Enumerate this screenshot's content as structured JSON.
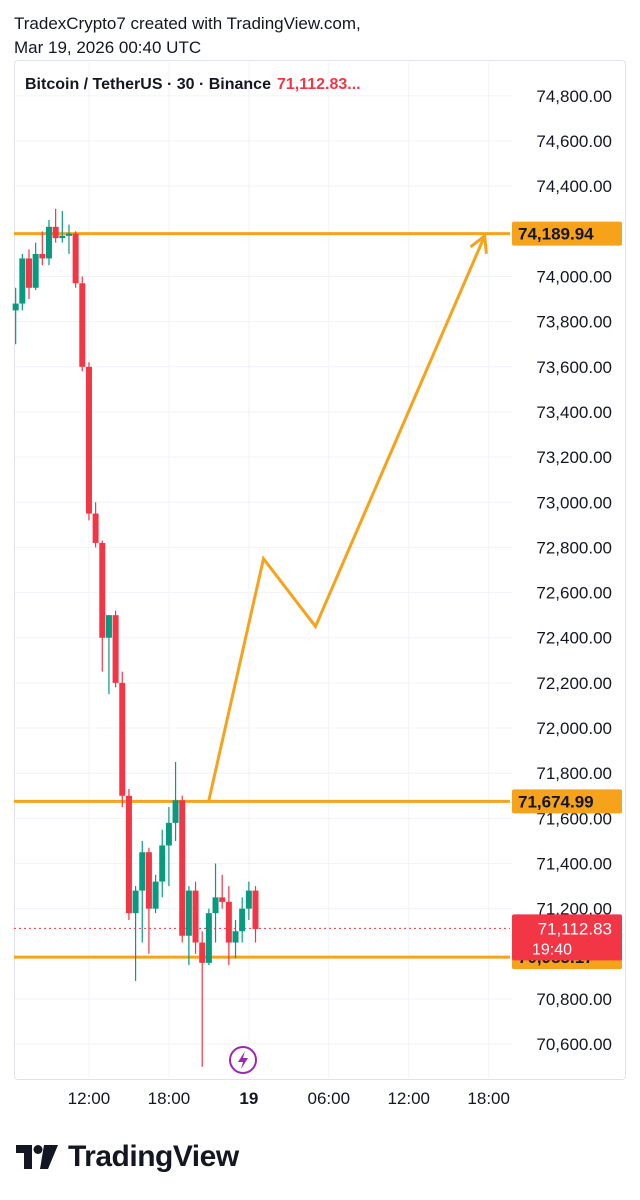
{
  "header": {
    "line1": "TradexCrypto7 created with TradingView.com,",
    "line2": "Mar 19, 2026 00:40 UTC"
  },
  "legend": {
    "symbol": "Bitcoin / TetherUS · 30 · Binance",
    "price": "71,112.83..."
  },
  "footer": {
    "brand": "TradingView"
  },
  "chart_data": {
    "type": "candlestick",
    "y_range": [
      70450,
      74950
    ],
    "y_ticks": [
      "74,800.00",
      "74,600.00",
      "74,400.00",
      "74,000.00",
      "73,800.00",
      "73,600.00",
      "73,400.00",
      "73,200.00",
      "73,000.00",
      "72,800.00",
      "72,600.00",
      "72,400.00",
      "72,200.00",
      "72,000.00",
      "71,800.00",
      "71,600.00",
      "71,400.00",
      "71,200.00",
      "70,800.00",
      "70,600.00"
    ],
    "y_tick_values": [
      74800,
      74600,
      74400,
      74000,
      73800,
      73600,
      73400,
      73200,
      73000,
      72800,
      72600,
      72400,
      72200,
      72000,
      71800,
      71600,
      71400,
      71200,
      70800,
      70600
    ],
    "x_ticks": [
      {
        "label": "12:00",
        "t": 12,
        "bold": false
      },
      {
        "label": "18:00",
        "t": 18,
        "bold": false
      },
      {
        "label": "19",
        "t": 24,
        "bold": true
      },
      {
        "label": "06:00",
        "t": 30,
        "bold": false
      },
      {
        "label": "12:00",
        "t": 36,
        "bold": false
      },
      {
        "label": "18:00",
        "t": 42,
        "bold": false
      }
    ],
    "x_range": [
      6.45,
      45.1
    ],
    "hlines": [
      {
        "value": 74189.94,
        "label": "74,189.94",
        "color": "#f7a21b"
      },
      {
        "value": 71674.99,
        "label": "71,674.99",
        "color": "#f7a21b"
      },
      {
        "value": 70985.17,
        "label": "70,985.17",
        "color": "#f7a21b"
      }
    ],
    "last_price": {
      "value": 71112.83,
      "label": "71,112.83",
      "countdown": "19:40",
      "color": "#f23645"
    },
    "projection": [
      {
        "t": 21.0,
        "v": 71680
      },
      {
        "t": 25.1,
        "v": 72750
      },
      {
        "t": 29.0,
        "v": 72450
      },
      {
        "t": 41.7,
        "v": 74180
      }
    ],
    "candles": [
      {
        "t": 6.5,
        "o": 73850,
        "h": 73950,
        "l": 73700,
        "c": 73880
      },
      {
        "t": 7.0,
        "o": 73880,
        "h": 74100,
        "l": 73850,
        "c": 74080
      },
      {
        "t": 7.5,
        "o": 74080,
        "h": 74120,
        "l": 73900,
        "c": 73950
      },
      {
        "t": 8.0,
        "o": 73950,
        "h": 74150,
        "l": 73940,
        "c": 74100
      },
      {
        "t": 8.5,
        "o": 74100,
        "h": 74200,
        "l": 74050,
        "c": 74080
      },
      {
        "t": 9.0,
        "o": 74080,
        "h": 74250,
        "l": 74050,
        "c": 74220
      },
      {
        "t": 9.5,
        "o": 74220,
        "h": 74300,
        "l": 74150,
        "c": 74170
      },
      {
        "t": 10.0,
        "o": 74170,
        "h": 74290,
        "l": 74150,
        "c": 74180
      },
      {
        "t": 10.5,
        "o": 74180,
        "h": 74230,
        "l": 74100,
        "c": 74190
      },
      {
        "t": 11.0,
        "o": 74190,
        "h": 74200,
        "l": 73950,
        "c": 73970
      },
      {
        "t": 11.5,
        "o": 73970,
        "h": 74000,
        "l": 73580,
        "c": 73600
      },
      {
        "t": 12.0,
        "o": 73600,
        "h": 73620,
        "l": 72920,
        "c": 72950
      },
      {
        "t": 12.5,
        "o": 72950,
        "h": 73000,
        "l": 72800,
        "c": 72820
      },
      {
        "t": 13.0,
        "o": 72820,
        "h": 72830,
        "l": 72250,
        "c": 72400
      },
      {
        "t": 13.5,
        "o": 72400,
        "h": 72500,
        "l": 72150,
        "c": 72500
      },
      {
        "t": 14.0,
        "o": 72500,
        "h": 72520,
        "l": 72180,
        "c": 72200
      },
      {
        "t": 14.5,
        "o": 72200,
        "h": 72250,
        "l": 71650,
        "c": 71700
      },
      {
        "t": 15.0,
        "o": 71700,
        "h": 71730,
        "l": 71150,
        "c": 71180
      },
      {
        "t": 15.5,
        "o": 71180,
        "h": 71300,
        "l": 70880,
        "c": 71280
      },
      {
        "t": 16.0,
        "o": 71280,
        "h": 71500,
        "l": 71050,
        "c": 71450
      },
      {
        "t": 16.5,
        "o": 71450,
        "h": 71470,
        "l": 71000,
        "c": 71200
      },
      {
        "t": 17.0,
        "o": 71200,
        "h": 71350,
        "l": 71180,
        "c": 71320
      },
      {
        "t": 17.5,
        "o": 71320,
        "h": 71550,
        "l": 71250,
        "c": 71480
      },
      {
        "t": 18.0,
        "o": 71480,
        "h": 71650,
        "l": 71300,
        "c": 71580
      },
      {
        "t": 18.5,
        "o": 71580,
        "h": 71850,
        "l": 71500,
        "c": 71680
      },
      {
        "t": 19.0,
        "o": 71680,
        "h": 71700,
        "l": 71050,
        "c": 71080
      },
      {
        "t": 19.5,
        "o": 71080,
        "h": 71300,
        "l": 70950,
        "c": 71280
      },
      {
        "t": 20.0,
        "o": 71280,
        "h": 71320,
        "l": 71000,
        "c": 71050
      },
      {
        "t": 20.5,
        "o": 71050,
        "h": 71100,
        "l": 70500,
        "c": 70960
      },
      {
        "t": 21.0,
        "o": 70960,
        "h": 71200,
        "l": 70950,
        "c": 71180
      },
      {
        "t": 21.5,
        "o": 71180,
        "h": 71400,
        "l": 71050,
        "c": 71250
      },
      {
        "t": 22.0,
        "o": 71250,
        "h": 71350,
        "l": 71200,
        "c": 71230
      },
      {
        "t": 22.5,
        "o": 71230,
        "h": 71300,
        "l": 70950,
        "c": 71050
      },
      {
        "t": 23.0,
        "o": 71050,
        "h": 71150,
        "l": 70980,
        "c": 71100
      },
      {
        "t": 23.5,
        "o": 71100,
        "h": 71250,
        "l": 71050,
        "c": 71200
      },
      {
        "t": 24.0,
        "o": 71200,
        "h": 71320,
        "l": 71150,
        "c": 71280
      },
      {
        "t": 24.5,
        "o": 71280,
        "h": 71300,
        "l": 71050,
        "c": 71110
      }
    ],
    "colors": {
      "up": "#089981",
      "down": "#f23645",
      "accent": "#f7a21b"
    }
  }
}
